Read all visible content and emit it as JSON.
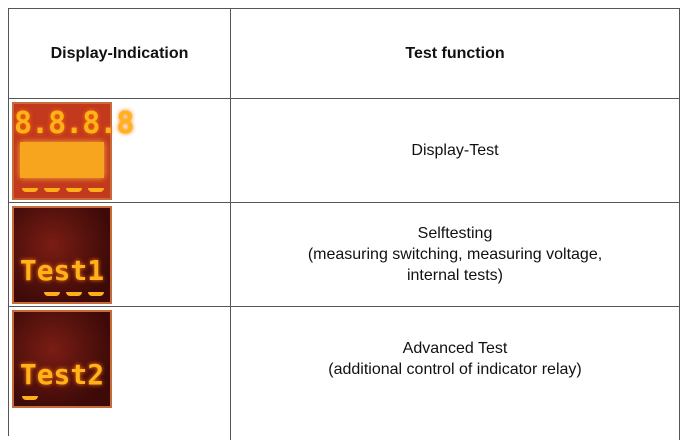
{
  "table": {
    "header": [
      "Display-Indication",
      "Test function"
    ],
    "rows": [
      {
        "display": "8.8.8.8",
        "function": [
          "Display-Test"
        ]
      },
      {
        "display": "Test1",
        "function": [
          "Selftesting",
          "(measuring switching, measuring voltage,",
          "internal tests)"
        ]
      },
      {
        "display": "Test2",
        "function": [
          "Advanced Test",
          "(additional control of indicator relay)"
        ]
      }
    ]
  }
}
